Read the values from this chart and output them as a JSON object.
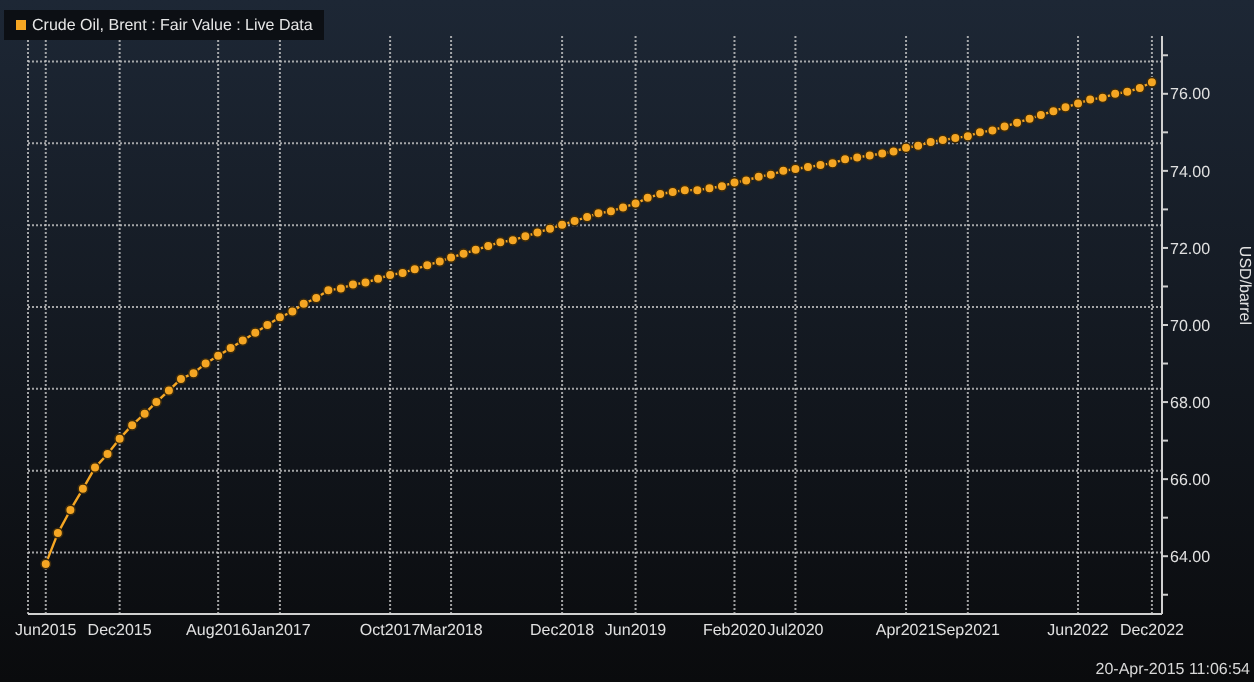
{
  "chart_data": {
    "type": "line",
    "ylabel": "USD/barrel",
    "legend": "top left",
    "grid": true,
    "marker": "circle",
    "line_style": "solid",
    "annotations": [
      "20-Apr-2015 11:06:54"
    ],
    "xlim": [
      "2015-04-18",
      "2022-12-26"
    ],
    "xticks": [
      {
        "value": "2015-06",
        "label": "Jun2015"
      },
      {
        "value": "2015-12",
        "label": "Dec2015"
      },
      {
        "value": "2016-08",
        "label": "Aug2016"
      },
      {
        "value": "2017-01",
        "label": "Jan2017"
      },
      {
        "value": "2017-10",
        "label": "Oct2017"
      },
      {
        "value": "2018-03",
        "label": "Mar2018"
      },
      {
        "value": "2018-12",
        "label": "Dec2018"
      },
      {
        "value": "2019-06",
        "label": "Jun2019"
      },
      {
        "value": "2020-02",
        "label": "Feb2020"
      },
      {
        "value": "2020-07",
        "label": "Jul2020"
      },
      {
        "value": "2021-04",
        "label": "Apr2021"
      },
      {
        "value": "2021-09",
        "label": "Sep2021"
      },
      {
        "value": "2022-06",
        "label": "Jun2022"
      },
      {
        "value": "2022-12",
        "label": "Dec2022"
      }
    ],
    "ylim": [
      62.5,
      77.5
    ],
    "yticks": [
      {
        "value": 63,
        "label": null
      },
      {
        "value": 64,
        "label": "64.00"
      },
      {
        "value": 65,
        "label": null
      },
      {
        "value": 66,
        "label": "66.00"
      },
      {
        "value": 67,
        "label": null
      },
      {
        "value": 68,
        "label": "68.00"
      },
      {
        "value": 69,
        "label": null
      },
      {
        "value": 70,
        "label": "70.00"
      },
      {
        "value": 71,
        "label": null
      },
      {
        "value": 72,
        "label": "72.00"
      },
      {
        "value": 73,
        "label": null
      },
      {
        "value": 74,
        "label": "74.00"
      },
      {
        "value": 75,
        "label": null
      },
      {
        "value": 76,
        "label": "76.00"
      },
      {
        "value": 77,
        "label": null
      }
    ],
    "x": [
      "2015-06",
      "2015-07",
      "2015-08",
      "2015-09",
      "2015-10",
      "2015-11",
      "2015-12",
      "2016-01",
      "2016-02",
      "2016-03",
      "2016-04",
      "2016-05",
      "2016-06",
      "2016-07",
      "2016-08",
      "2016-09",
      "2016-10",
      "2016-11",
      "2016-12",
      "2017-01",
      "2017-02",
      "2017-03",
      "2017-04",
      "2017-05",
      "2017-06",
      "2017-07",
      "2017-08",
      "2017-09",
      "2017-10",
      "2017-11",
      "2017-12",
      "2018-01",
      "2018-02",
      "2018-03",
      "2018-04",
      "2018-05",
      "2018-06",
      "2018-07",
      "2018-08",
      "2018-09",
      "2018-10",
      "2018-11",
      "2018-12",
      "2019-01",
      "2019-02",
      "2019-03",
      "2019-04",
      "2019-05",
      "2019-06",
      "2019-07",
      "2019-08",
      "2019-09",
      "2019-10",
      "2019-11",
      "2019-12",
      "2020-01",
      "2020-02",
      "2020-03",
      "2020-04",
      "2020-05",
      "2020-06",
      "2020-07",
      "2020-08",
      "2020-09",
      "2020-10",
      "2020-11",
      "2020-12",
      "2021-01",
      "2021-02",
      "2021-03",
      "2021-04",
      "2021-05",
      "2021-06",
      "2021-07",
      "2021-08",
      "2021-09",
      "2021-10",
      "2021-11",
      "2021-12",
      "2022-01",
      "2022-02",
      "2022-03",
      "2022-04",
      "2022-05",
      "2022-06",
      "2022-07",
      "2022-08",
      "2022-09",
      "2022-10",
      "2022-11",
      "2022-12"
    ],
    "series": [
      {
        "name": "Crude Oil, Brent : Fair Value : Live Data",
        "color": "#f5a623",
        "values": [
          63.8,
          64.6,
          65.2,
          65.75,
          66.3,
          66.65,
          67.05,
          67.4,
          67.7,
          68.0,
          68.3,
          68.6,
          68.75,
          69.0,
          69.2,
          69.4,
          69.6,
          69.8,
          70.0,
          70.2,
          70.35,
          70.55,
          70.7,
          70.9,
          70.95,
          71.05,
          71.1,
          71.2,
          71.3,
          71.35,
          71.45,
          71.55,
          71.65,
          71.75,
          71.85,
          71.95,
          72.05,
          72.15,
          72.2,
          72.3,
          72.4,
          72.5,
          72.6,
          72.7,
          72.8,
          72.9,
          72.95,
          73.05,
          73.15,
          73.3,
          73.4,
          73.45,
          73.5,
          73.5,
          73.55,
          73.6,
          73.7,
          73.75,
          73.85,
          73.9,
          74.0,
          74.05,
          74.1,
          74.15,
          74.2,
          74.3,
          74.35,
          74.4,
          74.45,
          74.5,
          74.6,
          74.65,
          74.75,
          74.8,
          74.85,
          74.9,
          75.0,
          75.05,
          75.15,
          75.25,
          75.35,
          75.45,
          75.55,
          75.65,
          75.75,
          75.85,
          75.9,
          76.0,
          76.05,
          76.15,
          76.3
        ]
      }
    ]
  }
}
